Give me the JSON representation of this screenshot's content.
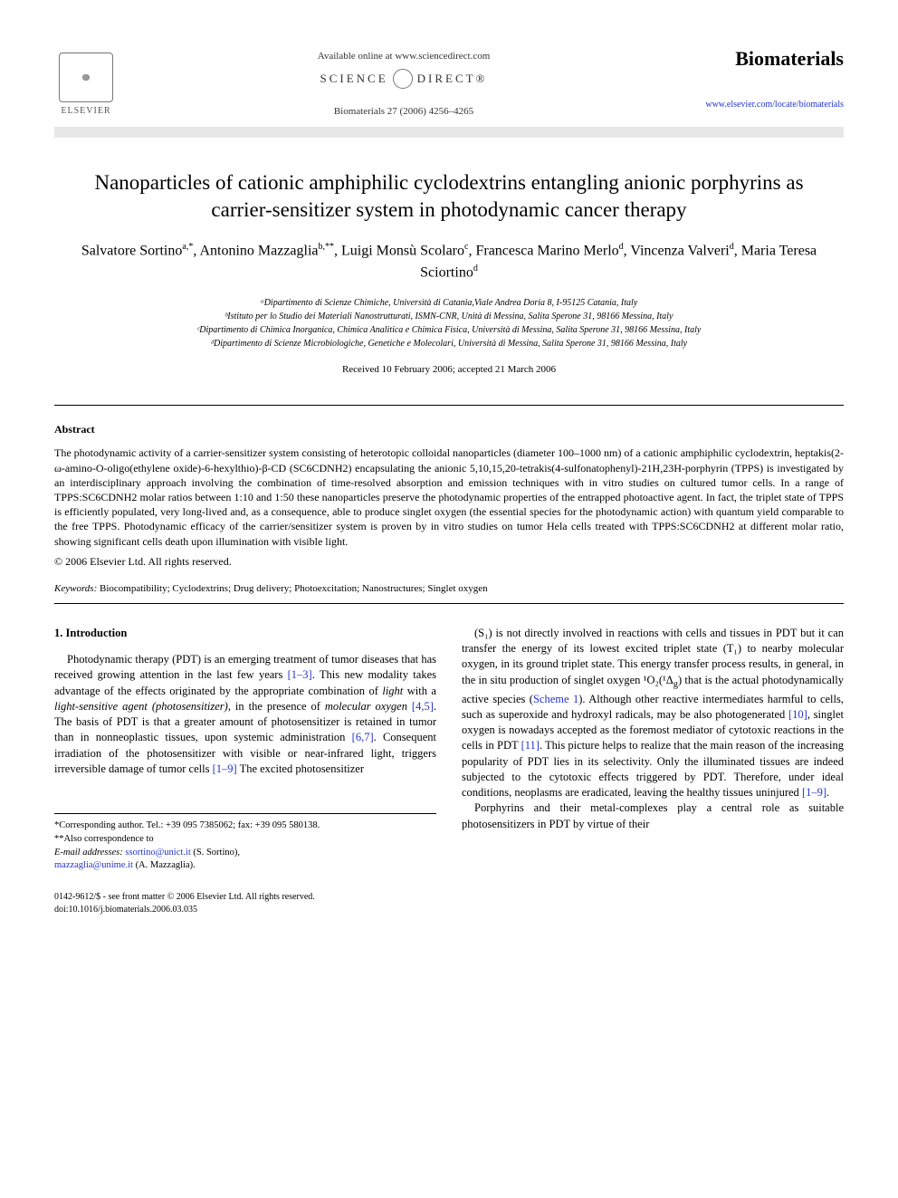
{
  "header": {
    "publisher_name": "ELSEVIER",
    "available_text": "Available online at www.sciencedirect.com",
    "science_text_left": "SCIENCE",
    "science_text_right": "DIRECT®",
    "journal_ref": "Biomaterials 27 (2006) 4256–4265",
    "journal_name": "Biomaterials",
    "journal_url": "www.elsevier.com/locate/biomaterials"
  },
  "title": "Nanoparticles of cationic amphiphilic cyclodextrins entangling anionic porphyrins as carrier-sensitizer system in photodynamic cancer therapy",
  "authors_html": "Salvatore Sortino<sup>a,*</sup>, Antonino Mazzaglia<sup>b,**</sup>, Luigi Monsù Scolaro<sup>c</sup>, Francesca Marino Merlo<sup>d</sup>, Vincenza Valveri<sup>d</sup>, Maria Teresa Sciortino<sup>d</sup>",
  "affiliations": [
    "ᵃDipartimento di Scienze Chimiche, Università di Catania,Viale Andrea Doria 8, I-95125 Catania, Italy",
    "ᵇIstituto per lo Studio dei Materiali Nanostrutturati, ISMN-CNR, Unità di Messina, Salita Sperone 31, 98166 Messina, Italy",
    "ᶜDipartimento di Chimica Inorganica, Chimica Analitica e Chimica Fisica, Università di Messina, Salita Sperone 31, 98166 Messina, Italy",
    "ᵈDipartimento di Scienze Microbiologiche, Genetiche e Molecolari, Università di Messina, Salita Sperone 31, 98166 Messina, Italy"
  ],
  "dates": "Received 10 February 2006; accepted 21 March 2006",
  "abstract": {
    "heading": "Abstract",
    "body": "The photodynamic activity of a carrier-sensitizer system consisting of heterotopic colloidal nanoparticles (diameter 100–1000 nm) of a cationic amphiphilic cyclodextrin, heptakis(2-ω-amino-O-oligo(ethylene oxide)-6-hexylthio)-β-CD (SC6CDNH2) encapsulating the anionic 5,10,15,20-tetrakis(4-sulfonatophenyl)-21H,23H-porphyrin (TPPS) is investigated by an interdisciplinary approach involving the combination of time-resolved absorption and emission techniques with in vitro studies on cultured tumor cells. In a range of TPPS:SC6CDNH2 molar ratios between 1:10 and 1:50 these nanoparticles preserve the photodynamic properties of the entrapped photoactive agent. In fact, the triplet state of TPPS is efficiently populated, very long-lived and, as a consequence, able to produce singlet oxygen (the essential species for the photodynamic action) with quantum yield comparable to the free TPPS. Photodynamic efficacy of the carrier/sensitizer system is proven by in vitro studies on tumor Hela cells treated with TPPS:SC6CDNH2 at different molar ratio, showing significant cells death upon illumination with visible light.",
    "copyright": "© 2006 Elsevier Ltd. All rights reserved."
  },
  "keywords": {
    "label": "Keywords:",
    "text": " Biocompatibility; Cyclodextrins; Drug delivery; Photoexcitation; Nanostructures; Singlet oxygen"
  },
  "section1": {
    "heading": "1. Introduction",
    "col1_html": "Photodynamic therapy (PDT) is an emerging treatment of tumor diseases that has received growing attention in the last few years <span class=\"ref-link\">[1–3]</span>. This new modality takes advantage of the effects originated by the appropriate combination of <i>light</i> with a <i>light-sensitive agent (photosensitizer)</i>, in the presence of <i>molecular oxygen</i> <span class=\"ref-link\">[4,5]</span>. The basis of PDT is that a greater amount of photosensitizer is retained in tumor than in nonneoplastic tissues, upon systemic administration <span class=\"ref-link\">[6,7]</span>. Consequent irradiation of the photosensitizer with visible or near-infrared light, triggers irreversible damage of tumor cells <span class=\"ref-link\">[1–9]</span> The excited photosensitizer",
    "col2_html": "(S₁) is not directly involved in reactions with cells and tissues in PDT but it can transfer the energy of its lowest excited triplet state (T₁) to nearby molecular oxygen, in its ground triplet state. This energy transfer process results, in general, in the in situ production of singlet oxygen ¹O₂(¹Δ<sub>g</sub>) that is the actual photodynamically active species (<span class=\"ref-link\">Scheme 1</span>). Although other reactive intermediates harmful to cells, such as superoxide and hydroxyl radicals, may be also photogenerated <span class=\"ref-link\">[10]</span>, singlet oxygen is nowadays accepted as the foremost mediator of cytotoxic reactions in the cells in PDT <span class=\"ref-link\">[11]</span>. This picture helps to realize that the main reason of the increasing popularity of PDT lies in its selectivity. Only the illuminated tissues are indeed subjected to the cytotoxic effects triggered by PDT. Therefore, under ideal conditions, neoplasms are eradicated, leaving the healthy tissues uninjured <span class=\"ref-link\">[1–9]</span>.",
    "col2_p2": "Porphyrins and their metal-complexes play a central role as suitable photosensitizers in PDT by virtue of their"
  },
  "footnotes": {
    "corr1": "*Corresponding author. Tel.: +39 095 7385062; fax: +39 095 580138.",
    "corr2": "**Also correspondence to",
    "email_label": "E-mail addresses:",
    "email1": "ssortino@unict.it",
    "email1_name": " (S. Sortino),",
    "email2": "mazzaglia@unime.it",
    "email2_name": " (A. Mazzaglia)."
  },
  "footer": {
    "left": "0142-9612/$ - see front matter © 2006 Elsevier Ltd. All rights reserved.",
    "doi": "doi:10.1016/j.biomaterials.2006.03.035"
  },
  "colors": {
    "link": "#2233cc",
    "text": "#000000",
    "background": "#ffffff",
    "strip": "#bbbbbb"
  }
}
